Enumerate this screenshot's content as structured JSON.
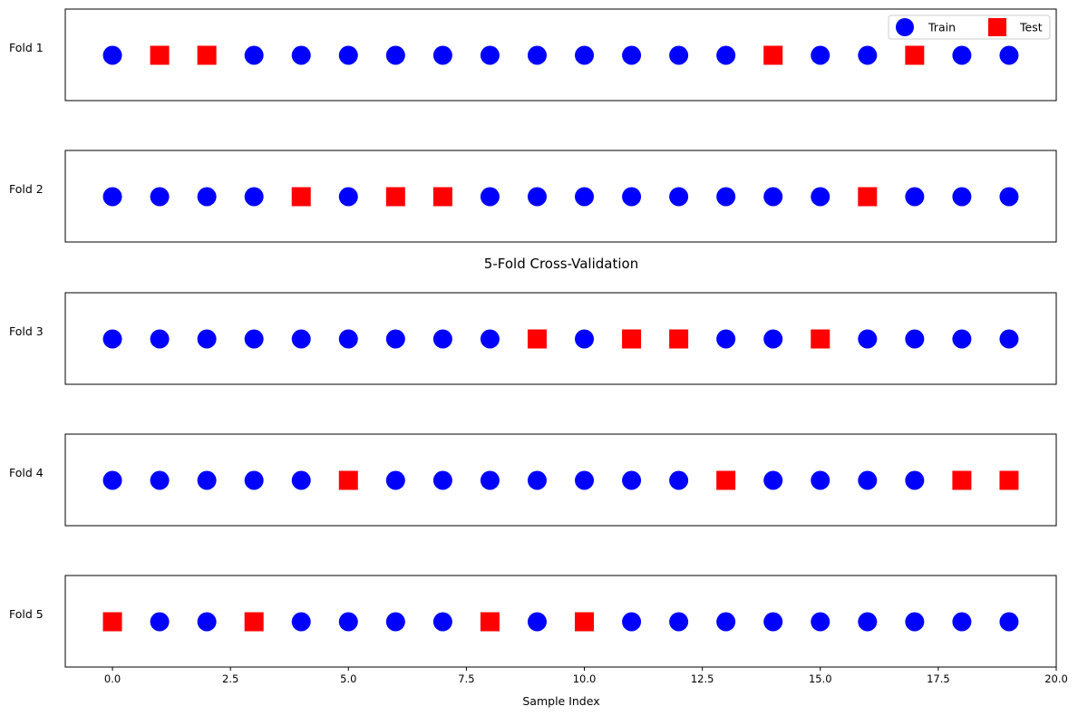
{
  "chart_data": {
    "type": "scatter",
    "title": "5-Fold Cross-Validation",
    "xlabel": "Sample Index",
    "xlim": [
      -1,
      20
    ],
    "x_ticks": [
      0.0,
      2.5,
      5.0,
      7.5,
      10.0,
      12.5,
      15.0,
      17.5,
      20.0
    ],
    "x_tick_labels": [
      "0.0",
      "2.5",
      "5.0",
      "7.5",
      "10.0",
      "12.5",
      "15.0",
      "17.5",
      "20.0"
    ],
    "samples": [
      0,
      1,
      2,
      3,
      4,
      5,
      6,
      7,
      8,
      9,
      10,
      11,
      12,
      13,
      14,
      15,
      16,
      17,
      18,
      19
    ],
    "legend": {
      "placement": "top-right",
      "entries": [
        {
          "label": "Train",
          "marker": "circle",
          "color": "#0000ff"
        },
        {
          "label": "Test",
          "marker": "square",
          "color": "#ff0000"
        }
      ]
    },
    "folds": [
      {
        "label": "Fold 1",
        "test_indices": [
          1,
          2,
          14,
          17
        ]
      },
      {
        "label": "Fold 2",
        "test_indices": [
          4,
          6,
          7,
          16
        ]
      },
      {
        "label": "Fold 3",
        "test_indices": [
          9,
          11,
          12,
          15
        ]
      },
      {
        "label": "Fold 4",
        "test_indices": [
          5,
          13,
          18,
          19
        ]
      },
      {
        "label": "Fold 5",
        "test_indices": [
          0,
          3,
          8,
          10
        ]
      }
    ],
    "colors": {
      "train": "#0000ff",
      "test": "#ff0000"
    }
  }
}
